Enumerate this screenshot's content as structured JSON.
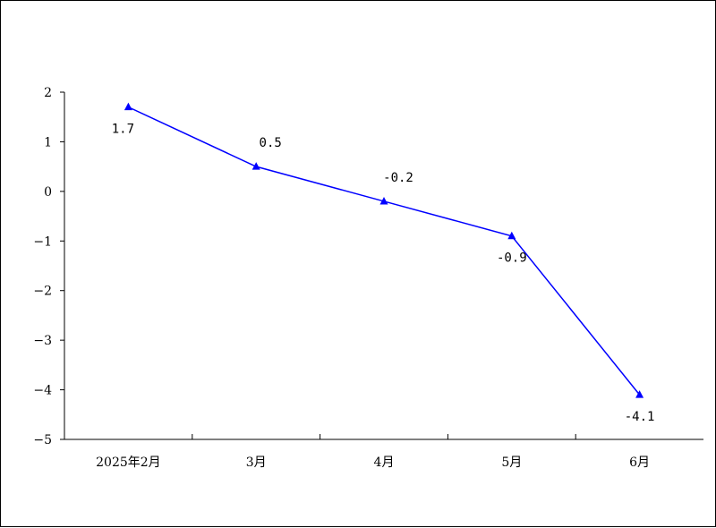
{
  "chart_data": {
    "type": "line",
    "categories": [
      "2025年2月",
      "3月",
      "4月",
      "5月",
      "6月"
    ],
    "series": [
      {
        "values": [
          1.7,
          0.5,
          -0.2,
          -0.9,
          -4.1
        ],
        "color": "#0000ff",
        "marker": "triangle"
      }
    ],
    "data_labels": [
      "1.7",
      "0.5",
      "-0.2",
      "-0.9",
      "-4.1"
    ],
    "y_ticks": [
      "2",
      "1",
      "0",
      "−1",
      "−2",
      "−3",
      "−4",
      "−5"
    ],
    "ylim": [
      -5,
      2
    ],
    "grid": false,
    "legend": "none"
  }
}
